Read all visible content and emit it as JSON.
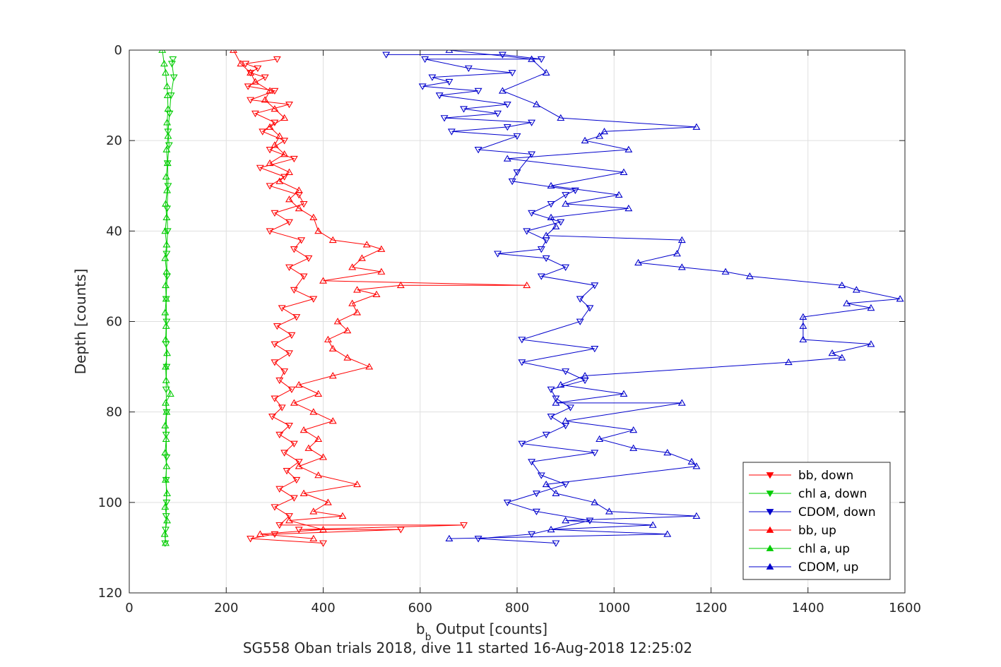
{
  "chart_data": {
    "type": "line",
    "title": "",
    "xlabel": "b_b Output [counts]",
    "xlabel_main": "b",
    "xlabel_sub": "b",
    "xlabel_rest": " Output [counts]",
    "ylabel": "Depth [counts]",
    "caption": "SG558 Oban trials 2018, dive 11 started 16-Aug-2018 12:25:02",
    "xlim": [
      0,
      1600
    ],
    "ylim": [
      0,
      120
    ],
    "y_reversed": true,
    "grid": true,
    "x_ticks": [
      0,
      200,
      400,
      600,
      800,
      1000,
      1200,
      1400,
      1600
    ],
    "y_ticks": [
      0,
      20,
      40,
      60,
      80,
      100,
      120
    ],
    "legend_position": "bottom-right",
    "colors": {
      "red": "#ff0000",
      "green": "#00cc00",
      "blue": "#0000cc"
    },
    "series": [
      {
        "name": "bb, down",
        "color": "#ff0000",
        "marker": "triangle-down",
        "points": [
          [
            305,
            2
          ],
          [
            240,
            3
          ],
          [
            265,
            4
          ],
          [
            250,
            5
          ],
          [
            280,
            6
          ],
          [
            245,
            8
          ],
          [
            300,
            9
          ],
          [
            250,
            11
          ],
          [
            330,
            12
          ],
          [
            260,
            14
          ],
          [
            300,
            16
          ],
          [
            275,
            18
          ],
          [
            320,
            20
          ],
          [
            290,
            22
          ],
          [
            340,
            24
          ],
          [
            270,
            26
          ],
          [
            320,
            28
          ],
          [
            290,
            30
          ],
          [
            350,
            32
          ],
          [
            360,
            34
          ],
          [
            300,
            36
          ],
          [
            330,
            38
          ],
          [
            290,
            40
          ],
          [
            355,
            42
          ],
          [
            340,
            44
          ],
          [
            370,
            46
          ],
          [
            330,
            48
          ],
          [
            360,
            50
          ],
          [
            340,
            53
          ],
          [
            380,
            55
          ],
          [
            315,
            57
          ],
          [
            345,
            59
          ],
          [
            305,
            61
          ],
          [
            335,
            63
          ],
          [
            300,
            65
          ],
          [
            330,
            67
          ],
          [
            300,
            69
          ],
          [
            320,
            71
          ],
          [
            310,
            73
          ],
          [
            335,
            75
          ],
          [
            300,
            77
          ],
          [
            315,
            79
          ],
          [
            295,
            81
          ],
          [
            330,
            83
          ],
          [
            310,
            85
          ],
          [
            340,
            87
          ],
          [
            320,
            89
          ],
          [
            350,
            91
          ],
          [
            325,
            93
          ],
          [
            345,
            95
          ],
          [
            310,
            97
          ],
          [
            340,
            99
          ],
          [
            300,
            101
          ],
          [
            330,
            103
          ],
          [
            310,
            105
          ],
          [
            690,
            105
          ],
          [
            350,
            106
          ],
          [
            560,
            106
          ],
          [
            300,
            107
          ],
          [
            250,
            108
          ],
          [
            400,
            109
          ]
        ]
      },
      {
        "name": "chl a, down",
        "color": "#00cc00",
        "marker": "triangle-down",
        "points": [
          [
            90,
            2
          ],
          [
            88,
            3
          ],
          [
            92,
            6
          ],
          [
            86,
            10
          ],
          [
            83,
            14
          ],
          [
            80,
            18
          ],
          [
            82,
            21
          ],
          [
            79,
            25
          ],
          [
            80,
            30
          ],
          [
            78,
            35
          ],
          [
            79,
            40
          ],
          [
            77,
            45
          ],
          [
            78,
            50
          ],
          [
            76,
            55
          ],
          [
            77,
            60
          ],
          [
            76,
            65
          ],
          [
            77,
            70
          ],
          [
            76,
            75
          ],
          [
            77,
            80
          ],
          [
            76,
            85
          ],
          [
            77,
            90
          ],
          [
            76,
            95
          ],
          [
            77,
            100
          ],
          [
            76,
            103
          ],
          [
            75,
            106
          ],
          [
            74,
            109
          ]
        ]
      },
      {
        "name": "CDOM, down",
        "color": "#0000cc",
        "marker": "triangle-down",
        "points": [
          [
            530,
            1
          ],
          [
            770,
            1
          ],
          [
            850,
            2
          ],
          [
            610,
            2
          ],
          [
            700,
            4
          ],
          [
            790,
            5
          ],
          [
            625,
            6
          ],
          [
            660,
            7
          ],
          [
            605,
            8
          ],
          [
            720,
            9
          ],
          [
            640,
            10
          ],
          [
            780,
            12
          ],
          [
            690,
            13
          ],
          [
            760,
            14
          ],
          [
            650,
            15
          ],
          [
            830,
            16
          ],
          [
            780,
            17
          ],
          [
            665,
            18
          ],
          [
            800,
            19
          ],
          [
            720,
            22
          ],
          [
            830,
            23
          ],
          [
            800,
            27
          ],
          [
            790,
            29
          ],
          [
            920,
            31
          ],
          [
            900,
            32
          ],
          [
            870,
            34
          ],
          [
            830,
            36
          ],
          [
            890,
            38
          ],
          [
            820,
            40
          ],
          [
            860,
            42
          ],
          [
            850,
            44
          ],
          [
            760,
            45
          ],
          [
            860,
            46
          ],
          [
            900,
            48
          ],
          [
            850,
            50
          ],
          [
            960,
            52
          ],
          [
            930,
            55
          ],
          [
            950,
            57
          ],
          [
            930,
            60
          ],
          [
            810,
            64
          ],
          [
            960,
            66
          ],
          [
            810,
            69
          ],
          [
            900,
            71
          ],
          [
            940,
            73
          ],
          [
            870,
            75
          ],
          [
            880,
            77
          ],
          [
            910,
            79
          ],
          [
            870,
            81
          ],
          [
            900,
            83
          ],
          [
            860,
            85
          ],
          [
            810,
            87
          ],
          [
            960,
            89
          ],
          [
            830,
            91
          ],
          [
            850,
            94
          ],
          [
            900,
            96
          ],
          [
            840,
            98
          ],
          [
            780,
            100
          ],
          [
            840,
            102
          ],
          [
            950,
            104
          ],
          [
            830,
            107
          ],
          [
            720,
            108
          ],
          [
            880,
            109
          ]
        ]
      },
      {
        "name": "bb, up",
        "color": "#ff0000",
        "marker": "triangle-up",
        "points": [
          [
            380,
            108
          ],
          [
            270,
            107
          ],
          [
            400,
            106
          ],
          [
            330,
            104
          ],
          [
            440,
            103
          ],
          [
            380,
            102
          ],
          [
            410,
            100
          ],
          [
            360,
            98
          ],
          [
            470,
            96
          ],
          [
            390,
            94
          ],
          [
            350,
            92
          ],
          [
            400,
            90
          ],
          [
            370,
            88
          ],
          [
            390,
            86
          ],
          [
            360,
            84
          ],
          [
            420,
            82
          ],
          [
            380,
            80
          ],
          [
            340,
            78
          ],
          [
            390,
            76
          ],
          [
            350,
            74
          ],
          [
            420,
            72
          ],
          [
            495,
            70
          ],
          [
            450,
            68
          ],
          [
            420,
            66
          ],
          [
            410,
            64
          ],
          [
            450,
            62
          ],
          [
            430,
            60
          ],
          [
            470,
            58
          ],
          [
            460,
            56
          ],
          [
            510,
            54
          ],
          [
            470,
            53
          ],
          [
            560,
            52
          ],
          [
            820,
            52
          ],
          [
            400,
            51
          ],
          [
            520,
            49
          ],
          [
            460,
            48
          ],
          [
            480,
            46
          ],
          [
            520,
            44
          ],
          [
            490,
            43
          ],
          [
            420,
            42
          ],
          [
            390,
            40
          ],
          [
            380,
            37
          ],
          [
            350,
            35
          ],
          [
            330,
            33
          ],
          [
            350,
            31
          ],
          [
            310,
            29
          ],
          [
            330,
            27
          ],
          [
            290,
            25
          ],
          [
            320,
            23
          ],
          [
            300,
            21
          ],
          [
            310,
            19
          ],
          [
            290,
            17
          ],
          [
            320,
            15
          ],
          [
            300,
            13
          ],
          [
            280,
            11
          ],
          [
            290,
            9
          ],
          [
            260,
            7
          ],
          [
            250,
            5
          ],
          [
            230,
            3
          ],
          [
            215,
            0
          ]
        ]
      },
      {
        "name": "chl a, up",
        "color": "#00cc00",
        "marker": "triangle-up",
        "points": [
          [
            75,
            109
          ],
          [
            73,
            107
          ],
          [
            78,
            104
          ],
          [
            74,
            101
          ],
          [
            78,
            98
          ],
          [
            75,
            95
          ],
          [
            77,
            92
          ],
          [
            74,
            89
          ],
          [
            76,
            86
          ],
          [
            74,
            83
          ],
          [
            77,
            80
          ],
          [
            75,
            78
          ],
          [
            85,
            76
          ],
          [
            76,
            73
          ],
          [
            75,
            70
          ],
          [
            78,
            67
          ],
          [
            75,
            64
          ],
          [
            76,
            61
          ],
          [
            74,
            58
          ],
          [
            76,
            55
          ],
          [
            75,
            52
          ],
          [
            77,
            49
          ],
          [
            74,
            46
          ],
          [
            77,
            43
          ],
          [
            74,
            40
          ],
          [
            77,
            37
          ],
          [
            75,
            34
          ],
          [
            78,
            31
          ],
          [
            76,
            28
          ],
          [
            79,
            25
          ],
          [
            77,
            22
          ],
          [
            80,
            19
          ],
          [
            78,
            16
          ],
          [
            80,
            13
          ],
          [
            79,
            10
          ],
          [
            78,
            8
          ],
          [
            75,
            5
          ],
          [
            72,
            3
          ],
          [
            68,
            0
          ]
        ]
      },
      {
        "name": "CDOM, up",
        "color": "#0000cc",
        "marker": "triangle-up",
        "points": [
          [
            660,
            108
          ],
          [
            1110,
            107
          ],
          [
            870,
            106
          ],
          [
            1080,
            105
          ],
          [
            900,
            104
          ],
          [
            1170,
            103
          ],
          [
            990,
            102
          ],
          [
            960,
            100
          ],
          [
            880,
            98
          ],
          [
            860,
            96
          ],
          [
            1170,
            92
          ],
          [
            1160,
            91
          ],
          [
            1110,
            89
          ],
          [
            1040,
            88
          ],
          [
            970,
            86
          ],
          [
            1040,
            84
          ],
          [
            900,
            82
          ],
          [
            1140,
            78
          ],
          [
            880,
            78
          ],
          [
            1020,
            76
          ],
          [
            890,
            74
          ],
          [
            940,
            72
          ],
          [
            1360,
            69
          ],
          [
            1470,
            68
          ],
          [
            1450,
            67
          ],
          [
            1530,
            65
          ],
          [
            1390,
            64
          ],
          [
            1390,
            61
          ],
          [
            1390,
            59
          ],
          [
            1530,
            57
          ],
          [
            1480,
            56
          ],
          [
            1590,
            55
          ],
          [
            1500,
            53
          ],
          [
            1470,
            52
          ],
          [
            1280,
            50
          ],
          [
            1230,
            49
          ],
          [
            1140,
            48
          ],
          [
            1050,
            47
          ],
          [
            1130,
            45
          ],
          [
            1140,
            42
          ],
          [
            860,
            41
          ],
          [
            880,
            39
          ],
          [
            870,
            37
          ],
          [
            1030,
            35
          ],
          [
            900,
            34
          ],
          [
            1010,
            32
          ],
          [
            870,
            30
          ],
          [
            1020,
            27
          ],
          [
            780,
            24
          ],
          [
            1030,
            22
          ],
          [
            940,
            20
          ],
          [
            970,
            19
          ],
          [
            980,
            18
          ],
          [
            1170,
            17
          ],
          [
            890,
            15
          ],
          [
            840,
            12
          ],
          [
            770,
            9
          ],
          [
            860,
            5
          ],
          [
            830,
            2
          ],
          [
            660,
            0
          ]
        ]
      }
    ]
  }
}
